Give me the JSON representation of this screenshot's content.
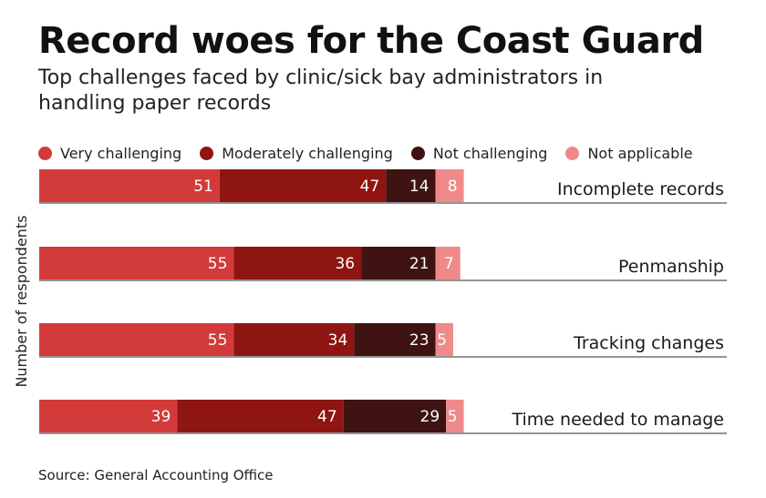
{
  "title": "Record woes for the Coast Guard",
  "subtitle": "Top challenges faced by clinic/sick bay administrators in handling paper records",
  "source": "Source: General Accounting Office",
  "chart_data": {
    "type": "bar",
    "orientation": "horizontal",
    "stacked": true,
    "title": "Record woes for the Coast Guard",
    "subtitle": "Top challenges faced by clinic/sick bay administrators in handling paper records",
    "ylabel": "Number of respondents",
    "xlabel": "",
    "legend_position": "top",
    "categories": [
      "Incomplete records",
      "Penmanship",
      "Tracking changes",
      "Time needed to manage"
    ],
    "series": [
      {
        "name": "Very challenging",
        "color": "#d33a3a",
        "values": [
          51,
          55,
          55,
          39
        ]
      },
      {
        "name": "Moderately challenging",
        "color": "#8e1512",
        "values": [
          47,
          36,
          34,
          47
        ]
      },
      {
        "name": "Not challenging",
        "color": "#3f1311",
        "values": [
          14,
          21,
          23,
          29
        ]
      },
      {
        "name": "Not applicable",
        "color": "#f08a8a",
        "values": [
          8,
          7,
          5,
          5
        ]
      }
    ]
  }
}
